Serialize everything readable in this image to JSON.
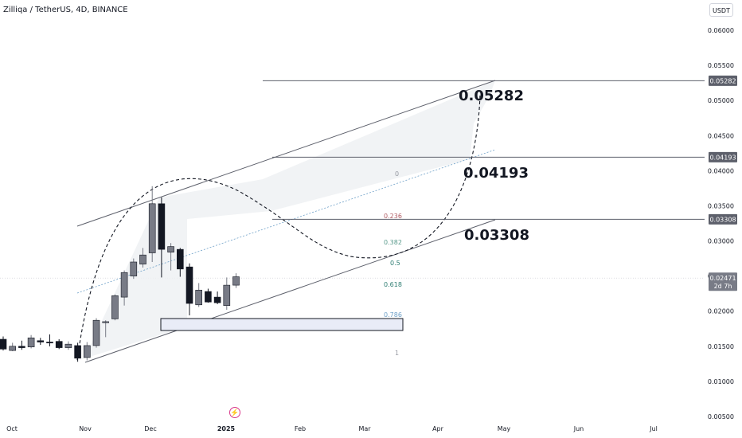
{
  "header": {
    "title": "Zilliqa / TetherUS, 4D, BINANCE",
    "currency": "USDT"
  },
  "colors": {
    "bull": "#787b86",
    "bear": "#131722",
    "line": "#5d606b",
    "tag_bg": "#5d606b",
    "fib_red": "#b05b63",
    "fib_green": "#5a9a8c",
    "fib_teal": "#2e7d72",
    "fib_blue": "#6ea0c8",
    "fib_gray": "#9598a1",
    "accent": "#d9388b"
  },
  "icons": {
    "events": "lightning-icon"
  },
  "chart_data": {
    "type": "candlestick",
    "y_scale": "linear",
    "ylim": [
      0.0048,
      0.0636
    ],
    "y_ticks": [
      "0.06000",
      "0.05500",
      "0.05000",
      "0.04500",
      "0.04000",
      "0.03500",
      "0.03000",
      "0.02500",
      "0.02000",
      "0.01500",
      "0.01000",
      "0.00500"
    ],
    "x_ticks": [
      "Oct",
      "Nov",
      "Dec",
      "2025",
      "Feb",
      "Mar",
      "Apr",
      "May",
      "Jun",
      "Jul"
    ],
    "candles": [
      {
        "o": 0.016,
        "h": 0.0164,
        "l": 0.0144,
        "c": 0.0146
      },
      {
        "o": 0.0144,
        "h": 0.0155,
        "l": 0.0143,
        "c": 0.015
      },
      {
        "o": 0.015,
        "h": 0.0158,
        "l": 0.0145,
        "c": 0.0148
      },
      {
        "o": 0.0149,
        "h": 0.0166,
        "l": 0.0147,
        "c": 0.0162
      },
      {
        "o": 0.0158,
        "h": 0.0162,
        "l": 0.0152,
        "c": 0.0156
      },
      {
        "o": 0.0156,
        "h": 0.0167,
        "l": 0.015,
        "c": 0.0155
      },
      {
        "o": 0.0157,
        "h": 0.016,
        "l": 0.0146,
        "c": 0.0148
      },
      {
        "o": 0.0148,
        "h": 0.0157,
        "l": 0.0145,
        "c": 0.0153
      },
      {
        "o": 0.0151,
        "h": 0.0155,
        "l": 0.0128,
        "c": 0.0133
      },
      {
        "o": 0.0134,
        "h": 0.0156,
        "l": 0.013,
        "c": 0.0151
      },
      {
        "o": 0.0151,
        "h": 0.019,
        "l": 0.0148,
        "c": 0.0187
      },
      {
        "o": 0.0184,
        "h": 0.0187,
        "l": 0.0163,
        "c": 0.0185
      },
      {
        "o": 0.0189,
        "h": 0.0224,
        "l": 0.0187,
        "c": 0.0222
      },
      {
        "o": 0.022,
        "h": 0.0258,
        "l": 0.0208,
        "c": 0.0255
      },
      {
        "o": 0.025,
        "h": 0.0275,
        "l": 0.0246,
        "c": 0.027
      },
      {
        "o": 0.0267,
        "h": 0.029,
        "l": 0.0262,
        "c": 0.028
      },
      {
        "o": 0.0283,
        "h": 0.0378,
        "l": 0.027,
        "c": 0.0353
      },
      {
        "o": 0.0353,
        "h": 0.0362,
        "l": 0.0248,
        "c": 0.0288
      },
      {
        "o": 0.0284,
        "h": 0.0297,
        "l": 0.0258,
        "c": 0.0292
      },
      {
        "o": 0.0288,
        "h": 0.029,
        "l": 0.0249,
        "c": 0.026
      },
      {
        "o": 0.0263,
        "h": 0.0268,
        "l": 0.0194,
        "c": 0.0211
      },
      {
        "o": 0.0209,
        "h": 0.024,
        "l": 0.0206,
        "c": 0.023
      },
      {
        "o": 0.0228,
        "h": 0.0232,
        "l": 0.0212,
        "c": 0.0213
      },
      {
        "o": 0.022,
        "h": 0.0228,
        "l": 0.021,
        "c": 0.0212
      },
      {
        "o": 0.0208,
        "h": 0.0248,
        "l": 0.0202,
        "c": 0.0237
      },
      {
        "o": 0.0237,
        "h": 0.0254,
        "l": 0.0233,
        "c": 0.0249
      }
    ],
    "levels": [
      {
        "value": 0.05282,
        "label": "0.05282",
        "tag": "0.05282"
      },
      {
        "value": 0.04193,
        "label": "0.04193",
        "tag": "0.04193"
      },
      {
        "value": 0.03308,
        "label": "0.03308",
        "tag": "0.03308"
      }
    ],
    "last_price": {
      "value": 0.02471,
      "tag": "0.02471",
      "countdown": "2d 7h"
    },
    "fib_levels": [
      "0",
      "0.236",
      "0.382",
      "0.5",
      "0.618",
      "0.786",
      "1"
    ]
  }
}
